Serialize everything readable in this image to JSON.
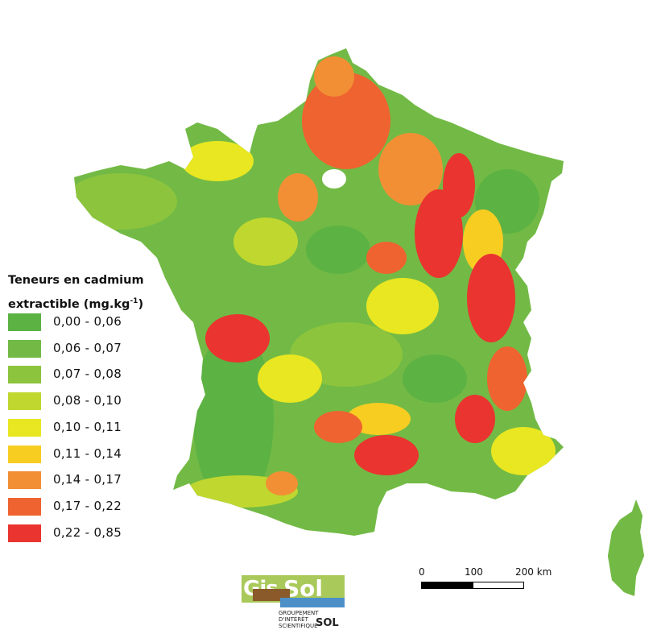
{
  "legend": {
    "title_line1": "Teneurs en cadmium",
    "title_line2_prefix": "extractible (mg.kg",
    "title_sup": "-1",
    "title_line2_suffix": ")",
    "classes": [
      {
        "label": "0,00 - 0,06",
        "color": "#5cb243"
      },
      {
        "label": "0,06 - 0,07",
        "color": "#72ba45"
      },
      {
        "label": "0,07 - 0,08",
        "color": "#8cc43e"
      },
      {
        "label": "0,08 - 0,10",
        "color": "#bfd72f"
      },
      {
        "label": "0,10 - 0,11",
        "color": "#e8e722"
      },
      {
        "label": "0,11 - 0,14",
        "color": "#f8cd22"
      },
      {
        "label": "0,14 - 0,17",
        "color": "#f28f34"
      },
      {
        "label": "0,17 - 0,22",
        "color": "#ef6330"
      },
      {
        "label": "0,22 - 0,85",
        "color": "#ea3430"
      }
    ]
  },
  "scale_bar": {
    "labels": [
      "0",
      "100",
      "200 km"
    ]
  },
  "logo": {
    "gis": "Gis",
    "sol": "Sol",
    "subtitle_1": "Groupement",
    "subtitle_2": "d'intérêt",
    "subtitle_3": "scientifique",
    "subtitle_sol": "SOL"
  }
}
